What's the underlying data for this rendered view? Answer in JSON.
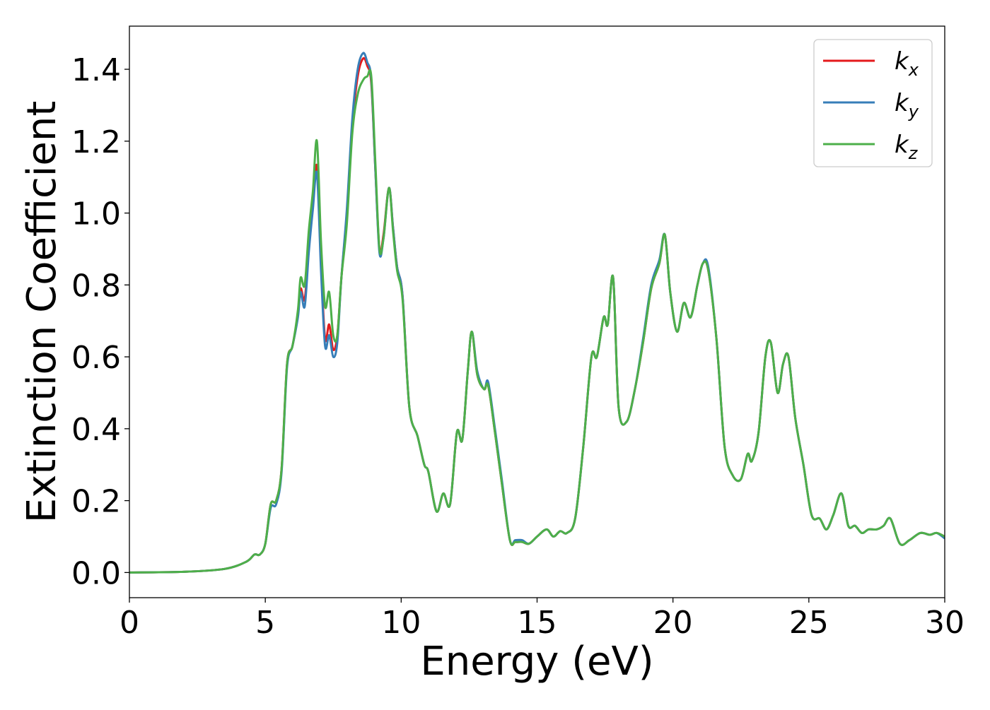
{
  "chart_data": {
    "type": "line",
    "title": "",
    "xlabel": "Energy (eV)",
    "ylabel": "Extinction Coefficient",
    "xlim": [
      0,
      30
    ],
    "ylim": [
      -0.07,
      1.52
    ],
    "xticks": [
      0,
      5,
      10,
      15,
      20,
      25,
      30
    ],
    "xtick_labels": [
      "0",
      "5",
      "10",
      "15",
      "20",
      "25",
      "30"
    ],
    "yticks": [
      0.0,
      0.2,
      0.4,
      0.6,
      0.8,
      1.0,
      1.2,
      1.4
    ],
    "ytick_labels": [
      "0.0",
      "0.2",
      "0.4",
      "0.6",
      "0.8",
      "1.0",
      "1.2",
      "1.4"
    ],
    "grid": false,
    "legend_position": "top-right",
    "series": [
      {
        "name": "k",
        "subscript": "x",
        "color": "#e41a1c",
        "x": [
          0,
          2,
          3.5,
          4.3,
          4.6,
          4.8,
          5.0,
          5.2,
          5.4,
          5.6,
          5.8,
          6.0,
          6.2,
          6.3,
          6.45,
          6.6,
          6.75,
          6.9,
          7.05,
          7.2,
          7.35,
          7.5,
          7.65,
          7.8,
          8.0,
          8.2,
          8.4,
          8.6,
          8.75,
          8.9,
          9.05,
          9.2,
          9.35,
          9.55,
          9.7,
          9.85,
          10.05,
          10.3,
          10.6,
          10.85,
          11.0,
          11.3,
          11.55,
          11.8,
          12.05,
          12.25,
          12.45,
          12.6,
          12.8,
          13.05,
          13.2,
          13.45,
          13.7,
          14.0,
          14.2,
          14.45,
          14.7,
          15.0,
          15.35,
          15.6,
          15.85,
          16.1,
          16.4,
          16.7,
          17.0,
          17.2,
          17.45,
          17.6,
          17.8,
          18.0,
          18.3,
          18.6,
          18.9,
          19.2,
          19.5,
          19.7,
          19.9,
          20.15,
          20.4,
          20.65,
          20.9,
          21.1,
          21.3,
          21.6,
          21.9,
          22.2,
          22.5,
          22.75,
          22.9,
          23.15,
          23.4,
          23.6,
          23.85,
          24.05,
          24.25,
          24.5,
          24.8,
          25.1,
          25.4,
          25.65,
          25.9,
          26.2,
          26.45,
          26.7,
          26.95,
          27.2,
          27.5,
          27.75,
          28.0,
          28.35,
          28.7,
          29.1,
          29.45,
          29.7,
          30.0
        ],
        "y": [
          0.0,
          0.002,
          0.01,
          0.03,
          0.05,
          0.05,
          0.08,
          0.19,
          0.2,
          0.29,
          0.58,
          0.63,
          0.72,
          0.79,
          0.76,
          0.9,
          1.02,
          1.13,
          0.86,
          0.65,
          0.69,
          0.62,
          0.66,
          0.82,
          1.0,
          1.24,
          1.38,
          1.43,
          1.41,
          1.36,
          1.12,
          0.9,
          0.94,
          1.07,
          0.96,
          0.85,
          0.77,
          0.46,
          0.38,
          0.3,
          0.28,
          0.17,
          0.22,
          0.19,
          0.39,
          0.37,
          0.56,
          0.67,
          0.55,
          0.51,
          0.52,
          0.39,
          0.25,
          0.09,
          0.085,
          0.085,
          0.08,
          0.1,
          0.12,
          0.1,
          0.115,
          0.11,
          0.15,
          0.35,
          0.6,
          0.6,
          0.71,
          0.69,
          0.82,
          0.46,
          0.42,
          0.51,
          0.64,
          0.79,
          0.86,
          0.94,
          0.78,
          0.67,
          0.75,
          0.71,
          0.8,
          0.86,
          0.84,
          0.65,
          0.35,
          0.27,
          0.26,
          0.33,
          0.31,
          0.39,
          0.6,
          0.64,
          0.5,
          0.58,
          0.6,
          0.43,
          0.3,
          0.16,
          0.15,
          0.12,
          0.16,
          0.22,
          0.13,
          0.13,
          0.11,
          0.12,
          0.12,
          0.13,
          0.15,
          0.08,
          0.09,
          0.11,
          0.105,
          0.11,
          0.1
        ]
      },
      {
        "name": "k",
        "subscript": "y",
        "color": "#377eb8",
        "x": [
          0,
          2,
          3.5,
          4.3,
          4.6,
          4.8,
          5.0,
          5.2,
          5.4,
          5.6,
          5.8,
          6.0,
          6.2,
          6.3,
          6.45,
          6.6,
          6.75,
          6.9,
          7.05,
          7.2,
          7.35,
          7.5,
          7.65,
          7.8,
          8.0,
          8.2,
          8.4,
          8.6,
          8.75,
          8.9,
          9.05,
          9.2,
          9.35,
          9.55,
          9.7,
          9.85,
          10.05,
          10.3,
          10.6,
          10.85,
          11.0,
          11.3,
          11.55,
          11.8,
          12.05,
          12.25,
          12.45,
          12.6,
          12.8,
          13.05,
          13.2,
          13.45,
          13.7,
          14.0,
          14.2,
          14.45,
          14.7,
          15.0,
          15.35,
          15.6,
          15.85,
          16.1,
          16.4,
          16.7,
          17.0,
          17.2,
          17.45,
          17.6,
          17.8,
          18.0,
          18.3,
          18.6,
          18.9,
          19.2,
          19.5,
          19.7,
          19.9,
          20.15,
          20.4,
          20.65,
          20.9,
          21.1,
          21.3,
          21.6,
          21.9,
          22.2,
          22.5,
          22.75,
          22.9,
          23.15,
          23.4,
          23.6,
          23.85,
          24.05,
          24.25,
          24.5,
          24.8,
          25.1,
          25.4,
          25.65,
          25.9,
          26.2,
          26.45,
          26.7,
          26.95,
          27.2,
          27.5,
          27.75,
          28.0,
          28.35,
          28.7,
          29.1,
          29.45,
          29.7,
          30.0
        ],
        "y": [
          0.0,
          0.002,
          0.01,
          0.03,
          0.05,
          0.05,
          0.08,
          0.18,
          0.19,
          0.28,
          0.57,
          0.63,
          0.71,
          0.78,
          0.74,
          0.89,
          1.01,
          1.11,
          0.84,
          0.63,
          0.66,
          0.6,
          0.64,
          0.82,
          1.01,
          1.26,
          1.4,
          1.445,
          1.42,
          1.37,
          1.12,
          0.89,
          0.93,
          1.07,
          0.96,
          0.85,
          0.77,
          0.46,
          0.38,
          0.3,
          0.28,
          0.17,
          0.22,
          0.19,
          0.39,
          0.37,
          0.56,
          0.67,
          0.56,
          0.51,
          0.53,
          0.4,
          0.26,
          0.09,
          0.09,
          0.09,
          0.08,
          0.1,
          0.12,
          0.1,
          0.115,
          0.11,
          0.15,
          0.35,
          0.6,
          0.6,
          0.71,
          0.69,
          0.82,
          0.46,
          0.42,
          0.51,
          0.65,
          0.8,
          0.87,
          0.94,
          0.78,
          0.67,
          0.75,
          0.71,
          0.8,
          0.86,
          0.85,
          0.65,
          0.35,
          0.27,
          0.26,
          0.33,
          0.31,
          0.39,
          0.6,
          0.64,
          0.5,
          0.58,
          0.6,
          0.43,
          0.3,
          0.16,
          0.15,
          0.12,
          0.16,
          0.22,
          0.13,
          0.13,
          0.11,
          0.12,
          0.12,
          0.13,
          0.15,
          0.08,
          0.09,
          0.11,
          0.105,
          0.11,
          0.095
        ]
      },
      {
        "name": "k",
        "subscript": "z",
        "color": "#4daf4a",
        "x": [
          0,
          2,
          3.5,
          4.3,
          4.6,
          4.8,
          5.0,
          5.2,
          5.4,
          5.6,
          5.8,
          6.0,
          6.2,
          6.3,
          6.45,
          6.6,
          6.75,
          6.9,
          7.05,
          7.2,
          7.35,
          7.5,
          7.65,
          7.8,
          8.0,
          8.2,
          8.4,
          8.6,
          8.75,
          8.9,
          9.05,
          9.2,
          9.35,
          9.55,
          9.7,
          9.85,
          10.05,
          10.3,
          10.6,
          10.85,
          11.0,
          11.3,
          11.55,
          11.8,
          12.05,
          12.25,
          12.45,
          12.6,
          12.8,
          13.05,
          13.2,
          13.45,
          13.7,
          14.0,
          14.2,
          14.45,
          14.7,
          15.0,
          15.35,
          15.6,
          15.85,
          16.1,
          16.4,
          16.7,
          17.0,
          17.2,
          17.45,
          17.6,
          17.8,
          18.0,
          18.3,
          18.6,
          18.9,
          19.2,
          19.5,
          19.7,
          19.9,
          20.15,
          20.4,
          20.65,
          20.9,
          21.1,
          21.3,
          21.6,
          21.9,
          22.2,
          22.5,
          22.75,
          22.9,
          23.15,
          23.4,
          23.6,
          23.85,
          24.05,
          24.25,
          24.5,
          24.8,
          25.1,
          25.4,
          25.65,
          25.9,
          26.2,
          26.45,
          26.7,
          26.95,
          27.2,
          27.5,
          27.75,
          28.0,
          28.35,
          28.7,
          29.1,
          29.45,
          29.7,
          30.0
        ],
        "y": [
          0.0,
          0.002,
          0.01,
          0.03,
          0.05,
          0.05,
          0.08,
          0.19,
          0.2,
          0.29,
          0.58,
          0.63,
          0.73,
          0.82,
          0.8,
          0.95,
          1.06,
          1.2,
          0.92,
          0.74,
          0.78,
          0.66,
          0.66,
          0.82,
          0.97,
          1.22,
          1.33,
          1.37,
          1.38,
          1.38,
          1.14,
          0.9,
          0.93,
          1.07,
          0.95,
          0.84,
          0.76,
          0.46,
          0.38,
          0.3,
          0.28,
          0.17,
          0.22,
          0.19,
          0.39,
          0.37,
          0.56,
          0.67,
          0.55,
          0.51,
          0.52,
          0.39,
          0.25,
          0.09,
          0.085,
          0.085,
          0.08,
          0.1,
          0.12,
          0.1,
          0.115,
          0.11,
          0.15,
          0.35,
          0.6,
          0.6,
          0.71,
          0.69,
          0.82,
          0.46,
          0.42,
          0.51,
          0.64,
          0.79,
          0.86,
          0.94,
          0.78,
          0.67,
          0.75,
          0.71,
          0.8,
          0.86,
          0.84,
          0.65,
          0.35,
          0.27,
          0.26,
          0.33,
          0.31,
          0.39,
          0.6,
          0.64,
          0.5,
          0.58,
          0.6,
          0.43,
          0.3,
          0.16,
          0.15,
          0.12,
          0.16,
          0.22,
          0.13,
          0.13,
          0.11,
          0.12,
          0.12,
          0.13,
          0.15,
          0.08,
          0.09,
          0.11,
          0.105,
          0.11,
          0.1
        ]
      }
    ]
  }
}
